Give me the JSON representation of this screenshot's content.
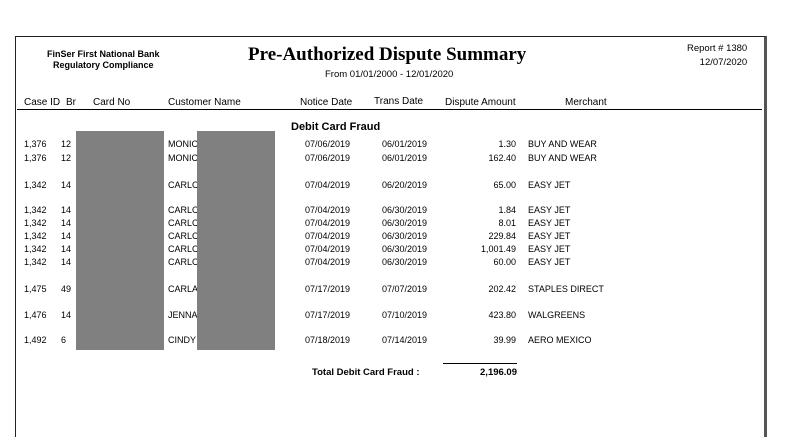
{
  "header": {
    "bank_line1": "FinSer First National Bank",
    "bank_line2": "Regulatory Compliance",
    "title": "Pre-Authorized Dispute Summary",
    "date_range": "From 01/01/2000 - 12/01/2020",
    "report_number": "Report # 1380",
    "report_date": "12/07/2020"
  },
  "columns": {
    "case_id": "Case ID",
    "br": "Br",
    "card_no": "Card No",
    "customer_name": "Customer Name",
    "notice_date": "Notice Date",
    "trans_date": "Trans Date",
    "dispute_amount": "Dispute Amount",
    "merchant": "Merchant"
  },
  "section_title": "Debit Card Fraud",
  "rows": [
    {
      "case_id": "1,376",
      "br": "12",
      "name": "MONIC",
      "notice": "07/06/2019",
      "trans": "06/01/2019",
      "amount": "1.30",
      "merchant": "BUY AND WEAR"
    },
    {
      "case_id": "1,376",
      "br": "12",
      "name": "MONIC",
      "notice": "07/06/2019",
      "trans": "06/01/2019",
      "amount": "162.40",
      "merchant": "BUY AND WEAR"
    },
    {
      "case_id": "1,342",
      "br": "14",
      "name": "CARLC",
      "notice": "07/04/2019",
      "trans": "06/20/2019",
      "amount": "65.00",
      "merchant": "EASY JET"
    },
    {
      "case_id": "1,342",
      "br": "14",
      "name": "CARLC",
      "notice": "07/04/2019",
      "trans": "06/30/2019",
      "amount": "1.84",
      "merchant": "EASY JET"
    },
    {
      "case_id": "1,342",
      "br": "14",
      "name": "CARLC",
      "notice": "07/04/2019",
      "trans": "06/30/2019",
      "amount": "8.01",
      "merchant": "EASY JET"
    },
    {
      "case_id": "1,342",
      "br": "14",
      "name": "CARLC",
      "notice": "07/04/2019",
      "trans": "06/30/2019",
      "amount": "229.84",
      "merchant": "EASY JET"
    },
    {
      "case_id": "1,342",
      "br": "14",
      "name": "CARLC",
      "notice": "07/04/2019",
      "trans": "06/30/2019",
      "amount": "1,001.49",
      "merchant": "EASY JET"
    },
    {
      "case_id": "1,342",
      "br": "14",
      "name": "CARLC",
      "notice": "07/04/2019",
      "trans": "06/30/2019",
      "amount": "60.00",
      "merchant": "EASY JET"
    },
    {
      "case_id": "1,475",
      "br": "49",
      "name": "CARLA",
      "notice": "07/17/2019",
      "trans": "07/07/2019",
      "amount": "202.42",
      "merchant": "STAPLES DIRECT"
    },
    {
      "case_id": "1,476",
      "br": "14",
      "name": "JENNA",
      "notice": "07/17/2019",
      "trans": "07/10/2019",
      "amount": "423.80",
      "merchant": "WALGREENS"
    },
    {
      "case_id": "1,492",
      "br": "6",
      "name": "CINDY",
      "notice": "07/18/2019",
      "trans": "07/14/2019",
      "amount": "39.99",
      "merchant": "AERO MEXICO"
    }
  ],
  "total": {
    "label": "Total Debit Card Fraud :",
    "value": "2,196.09"
  }
}
